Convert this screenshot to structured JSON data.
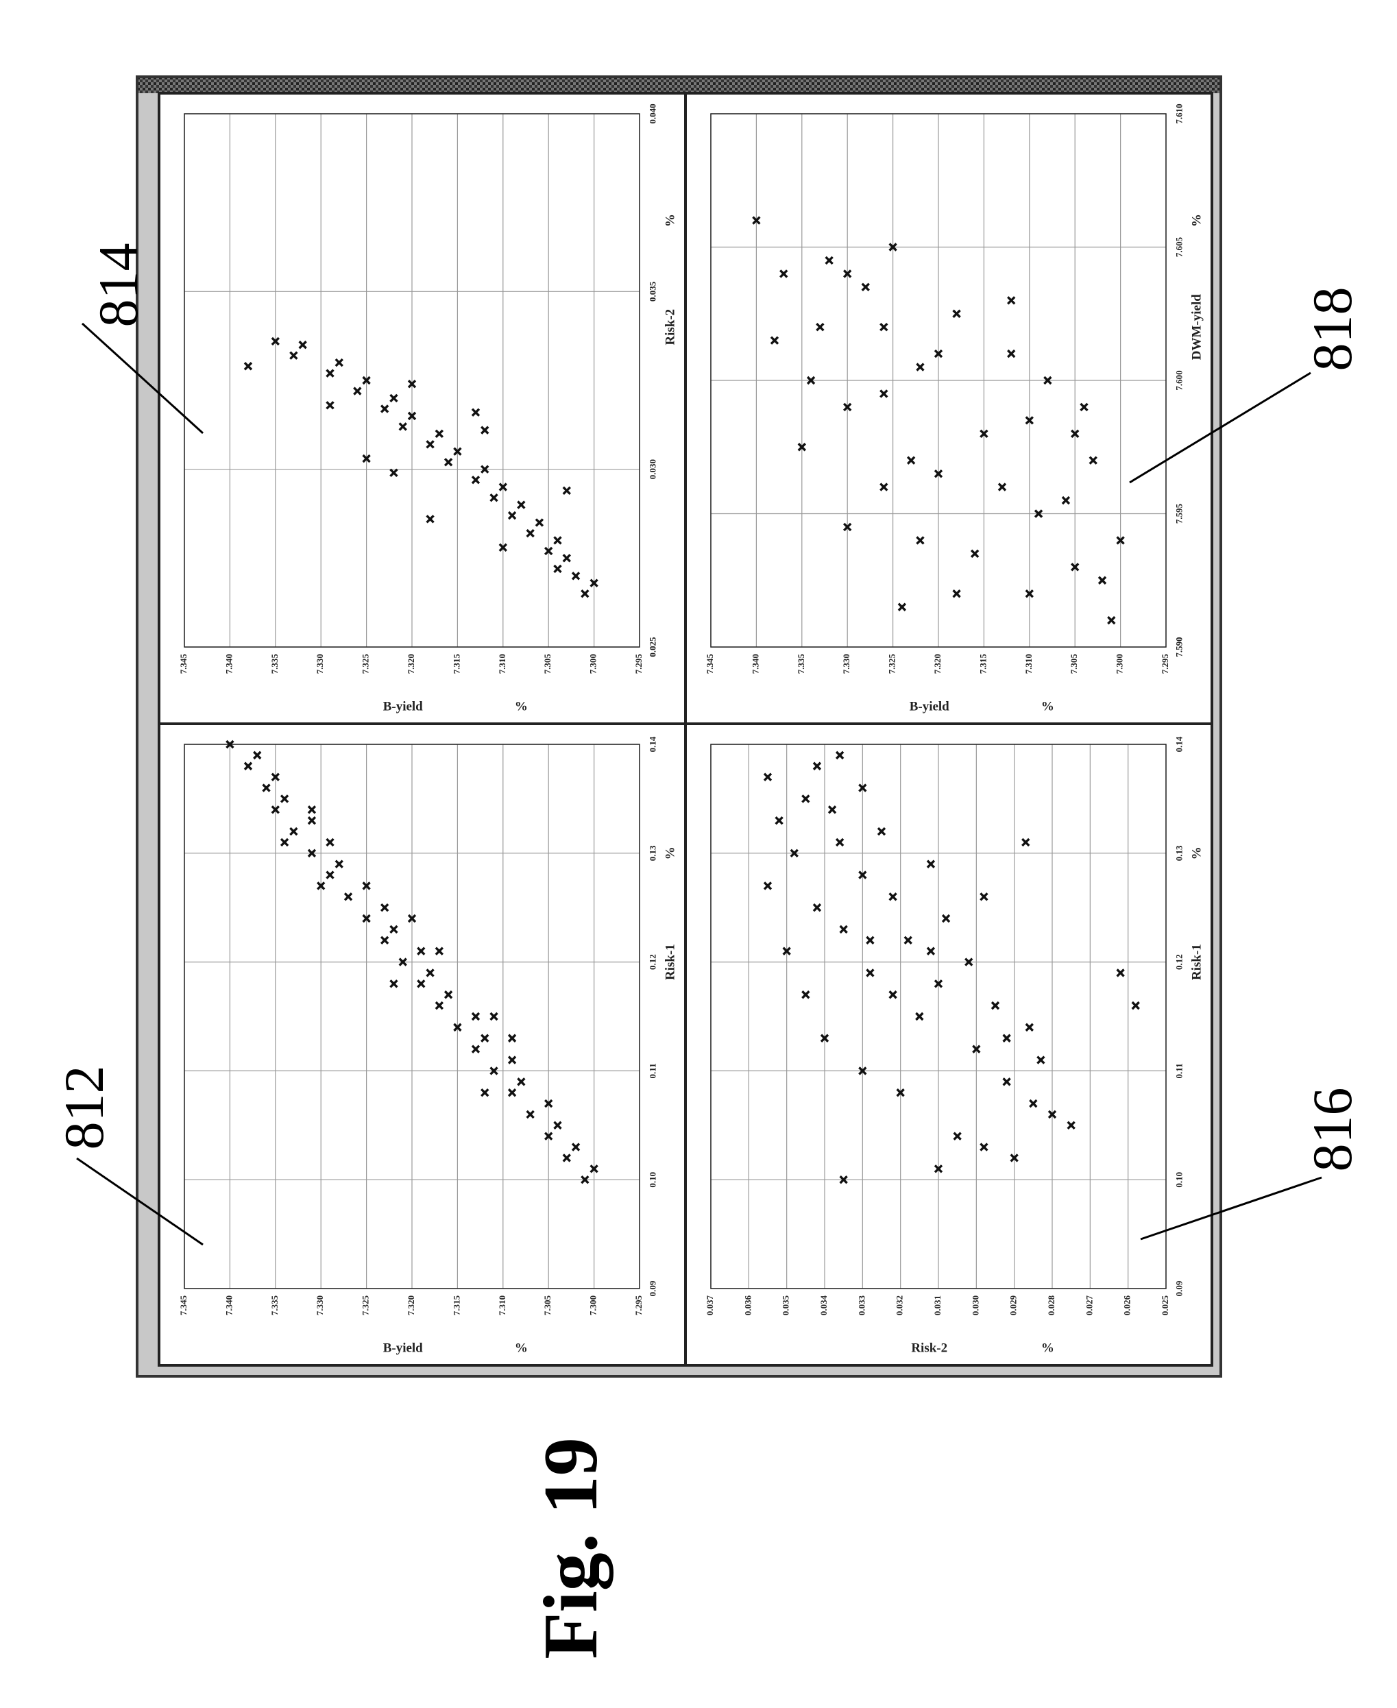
{
  "figure": {
    "title": "Fig. 19"
  },
  "chart_data": [
    {
      "type": "scatter",
      "ref": "812",
      "x_label": "Risk-1",
      "x_unit": "%",
      "y_label": "B-yield",
      "y_unit": "%",
      "color": "#111111",
      "grid": true,
      "marker": "x",
      "xlim": [
        0.09,
        0.14
      ],
      "xticks": [
        0.09,
        {
          "value": 0.1,
          "label": "0.10"
        },
        0.11,
        0.12,
        0.13,
        0.14
      ],
      "ylim": [
        7.295,
        7.345
      ],
      "yticks": [
        7.295,
        {
          "value": 7.3,
          "label": "7.300"
        },
        7.305,
        {
          "value": 7.31,
          "label": "7.310"
        },
        7.315,
        {
          "value": 7.32,
          "label": "7.320"
        },
        7.325,
        {
          "value": 7.33,
          "label": "7.330"
        },
        7.335,
        {
          "value": 7.34,
          "label": "7.340"
        },
        7.345
      ],
      "x": [
        0.1,
        0.101,
        0.102,
        0.103,
        0.104,
        0.105,
        0.106,
        0.107,
        0.108,
        0.109,
        0.11,
        0.111,
        0.112,
        0.113,
        0.114,
        0.115,
        0.116,
        0.117,
        0.118,
        0.119,
        0.12,
        0.121,
        0.122,
        0.123,
        0.124,
        0.125,
        0.126,
        0.127,
        0.128,
        0.129,
        0.13,
        0.131,
        0.132,
        0.133,
        0.134,
        0.135,
        0.136,
        0.137,
        0.138,
        0.139,
        0.14,
        0.113,
        0.118,
        0.124,
        0.131,
        0.108,
        0.121,
        0.127,
        0.115,
        0.134
      ],
      "values": [
        7.301,
        7.3,
        7.303,
        7.302,
        7.305,
        7.304,
        7.307,
        7.305,
        7.309,
        7.308,
        7.311,
        7.309,
        7.313,
        7.312,
        7.315,
        7.313,
        7.317,
        7.316,
        7.319,
        7.318,
        7.321,
        7.319,
        7.323,
        7.322,
        7.325,
        7.323,
        7.327,
        7.325,
        7.329,
        7.328,
        7.331,
        7.329,
        7.333,
        7.331,
        7.335,
        7.334,
        7.336,
        7.335,
        7.338,
        7.337,
        7.34,
        7.309,
        7.322,
        7.32,
        7.334,
        7.312,
        7.317,
        7.33,
        7.311,
        7.331
      ]
    },
    {
      "type": "scatter",
      "ref": "814",
      "x_label": "Risk-2",
      "x_unit": "%",
      "y_label": "B-yield",
      "y_unit": "%",
      "color": "#111111",
      "grid": true,
      "marker": "x",
      "xlim": [
        0.025,
        0.04
      ],
      "xticks": [
        0.025,
        {
          "value": 0.03,
          "label": "0.030"
        },
        0.035,
        {
          "value": 0.04,
          "label": "0.040"
        }
      ],
      "ylim": [
        7.295,
        7.345
      ],
      "yticks": [
        7.295,
        {
          "value": 7.3,
          "label": "7.300"
        },
        7.305,
        {
          "value": 7.31,
          "label": "7.310"
        },
        7.315,
        {
          "value": 7.32,
          "label": "7.320"
        },
        7.325,
        {
          "value": 7.33,
          "label": "7.330"
        },
        7.335,
        {
          "value": 7.34,
          "label": "7.340"
        },
        7.345
      ],
      "x": [
        0.0265,
        0.0268,
        0.027,
        0.0272,
        0.0275,
        0.0277,
        0.028,
        0.0282,
        0.0285,
        0.0287,
        0.029,
        0.0292,
        0.0295,
        0.0297,
        0.03,
        0.0302,
        0.0305,
        0.0307,
        0.031,
        0.0312,
        0.0315,
        0.0317,
        0.032,
        0.0322,
        0.0325,
        0.0327,
        0.033,
        0.0332,
        0.0335,
        0.0336,
        0.0278,
        0.0286,
        0.0294,
        0.0303,
        0.0311,
        0.0318,
        0.0324,
        0.0329,
        0.0299,
        0.0316
      ],
      "values": [
        7.301,
        7.3,
        7.302,
        7.304,
        7.303,
        7.305,
        7.304,
        7.307,
        7.306,
        7.309,
        7.308,
        7.311,
        7.31,
        7.313,
        7.312,
        7.316,
        7.315,
        7.318,
        7.317,
        7.321,
        7.32,
        7.323,
        7.322,
        7.326,
        7.325,
        7.329,
        7.328,
        7.333,
        7.332,
        7.335,
        7.31,
        7.318,
        7.303,
        7.325,
        7.312,
        7.329,
        7.32,
        7.338,
        7.322,
        7.313
      ]
    },
    {
      "type": "scatter",
      "ref": "816",
      "x_label": "Risk-1",
      "x_unit": "%",
      "y_label": "Risk-2",
      "y_unit": "%",
      "color": "#111111",
      "grid": true,
      "marker": "x",
      "xlim": [
        0.09,
        0.14
      ],
      "xticks": [
        0.09,
        {
          "value": 0.1,
          "label": "0.10"
        },
        0.11,
        0.12,
        0.13,
        0.14
      ],
      "ylim": [
        0.025,
        0.037
      ],
      "yticks": [
        0.025,
        0.026,
        0.027,
        0.028,
        0.029,
        {
          "value": 0.03,
          "label": "0.030"
        },
        0.031,
        0.032,
        0.033,
        0.034,
        0.035,
        0.036,
        0.037
      ],
      "x": [
        0.1,
        0.102,
        0.104,
        0.105,
        0.106,
        0.108,
        0.109,
        0.11,
        0.111,
        0.112,
        0.113,
        0.114,
        0.115,
        0.116,
        0.117,
        0.118,
        0.119,
        0.12,
        0.121,
        0.122,
        0.123,
        0.124,
        0.125,
        0.126,
        0.127,
        0.128,
        0.129,
        0.13,
        0.131,
        0.132,
        0.133,
        0.134,
        0.135,
        0.136,
        0.137,
        0.138,
        0.139,
        0.101,
        0.107,
        0.113,
        0.117,
        0.121,
        0.126,
        0.131,
        0.116,
        0.119,
        0.103,
        0.122
      ],
      "values": [
        0.0335,
        0.029,
        0.0305,
        0.0275,
        0.028,
        0.032,
        0.0292,
        0.033,
        0.0283,
        0.03,
        0.034,
        0.0286,
        0.0315,
        0.0295,
        0.0345,
        0.031,
        0.0328,
        0.0302,
        0.035,
        0.0318,
        0.0335,
        0.0308,
        0.0342,
        0.0322,
        0.0355,
        0.033,
        0.0312,
        0.0348,
        0.0336,
        0.0325,
        0.0352,
        0.0338,
        0.0345,
        0.033,
        0.0355,
        0.0342,
        0.0336,
        0.031,
        0.0285,
        0.0292,
        0.0322,
        0.0312,
        0.0298,
        0.0287,
        0.0258,
        0.0262,
        0.0298,
        0.0328
      ]
    },
    {
      "type": "scatter",
      "ref": "818",
      "x_label": "DWM-yield",
      "x_unit": "%",
      "y_label": "B-yield",
      "y_unit": "%",
      "color": "#111111",
      "grid": true,
      "marker": "x",
      "xlim": [
        7.59,
        7.61
      ],
      "xticks": [
        {
          "value": 7.59,
          "label": "7.590"
        },
        7.595,
        {
          "value": 7.6,
          "label": "7.600"
        },
        7.605,
        {
          "value": 7.61,
          "label": "7.610"
        }
      ],
      "ylim": [
        7.295,
        7.345
      ],
      "yticks": [
        7.295,
        {
          "value": 7.3,
          "label": "7.300"
        },
        7.305,
        {
          "value": 7.31,
          "label": "7.310"
        },
        7.315,
        {
          "value": 7.32,
          "label": "7.320"
        },
        7.325,
        {
          "value": 7.33,
          "label": "7.330"
        },
        7.335,
        {
          "value": 7.34,
          "label": "7.340"
        },
        7.345
      ],
      "x": [
        7.591,
        7.592,
        7.593,
        7.594,
        7.595,
        7.596,
        7.597,
        7.598,
        7.599,
        7.6,
        7.601,
        7.602,
        7.603,
        7.604,
        7.605,
        7.606,
        7.5915,
        7.5925,
        7.5935,
        7.5945,
        7.5955,
        7.5965,
        7.5975,
        7.5985,
        7.5995,
        7.6005,
        7.6015,
        7.6025,
        7.6035,
        7.6045,
        7.592,
        7.594,
        7.596,
        7.598,
        7.6,
        7.602,
        7.604,
        7.597,
        7.599,
        7.601
      ],
      "values": [
        7.301,
        7.318,
        7.305,
        7.322,
        7.309,
        7.326,
        7.303,
        7.315,
        7.33,
        7.308,
        7.32,
        7.333,
        7.312,
        7.337,
        7.325,
        7.34,
        7.324,
        7.302,
        7.316,
        7.33,
        7.306,
        7.32,
        7.335,
        7.31,
        7.326,
        7.322,
        7.338,
        7.318,
        7.328,
        7.332,
        7.31,
        7.3,
        7.313,
        7.305,
        7.334,
        7.326,
        7.33,
        7.323,
        7.304,
        7.312
      ]
    }
  ]
}
